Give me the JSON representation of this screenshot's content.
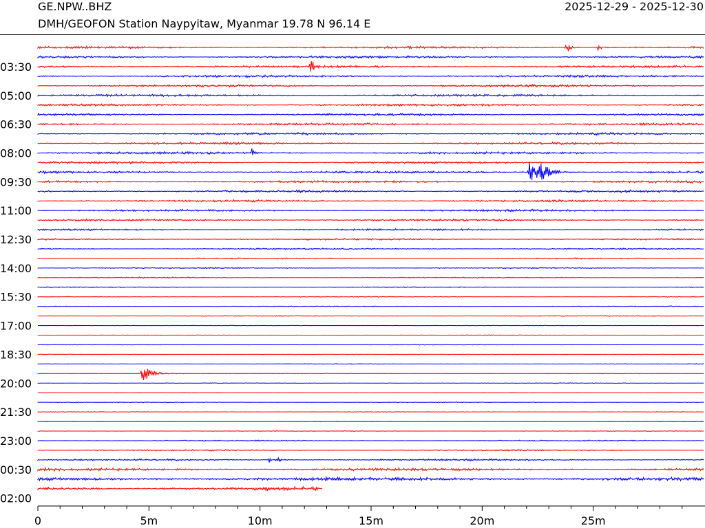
{
  "header": {
    "station_code": "GE.NPW..BHZ",
    "station_description": "DMH/GEOFON Station Naypyitaw, Myanmar  19.78 N 96.14 E",
    "date_range": "2025-12-29 - 2025-12-30"
  },
  "chart_data": {
    "type": "line",
    "subtype": "helicorder",
    "trace_count": 47,
    "trace_colors": [
      "#ff0000",
      "#0000ff"
    ],
    "y_tick_labels": [
      "03:30",
      "05:00",
      "06:30",
      "08:00",
      "09:30",
      "11:00",
      "12:30",
      "14:00",
      "15:30",
      "17:00",
      "18:30",
      "20:00",
      "21:30",
      "23:00",
      "00:30",
      "02:00"
    ],
    "x_ticks": [
      0,
      5,
      10,
      15,
      20,
      25
    ],
    "x_tick_labels": [
      "0",
      "5m",
      "10m",
      "15m",
      "20m",
      "25m"
    ],
    "x_range_minutes": [
      0,
      30
    ],
    "last_trace_end_minute": 12.8,
    "trace_noise_levels": [
      1.0,
      1.0,
      1.0,
      1.0,
      1.0,
      1.0,
      1.0,
      1.0,
      1.0,
      1.0,
      1.0,
      1.0,
      1.0,
      1.0,
      1.0,
      1.0,
      0.9,
      0.9,
      0.9,
      0.8,
      0.7,
      0.6,
      0.55,
      0.5,
      0.5,
      0.45,
      0.4,
      0.4,
      0.35,
      0.3,
      0.3,
      0.3,
      0.3,
      0.3,
      0.3,
      0.3,
      0.3,
      0.3,
      0.3,
      0.3,
      0.3,
      0.5,
      0.6,
      0.8,
      1.2,
      1.5,
      1.6
    ],
    "events": [
      {
        "trace": 0,
        "minute": 23.8,
        "amplitude": 9
      },
      {
        "trace": 0,
        "minute": 25.2,
        "amplitude": 8
      },
      {
        "trace": 2,
        "minute": 12.3,
        "amplitude": 11
      },
      {
        "trace": 11,
        "minute": 9.6,
        "amplitude": 9
      },
      {
        "trace": 13,
        "minute": 22.1,
        "amplitude": 17
      },
      {
        "trace": 13,
        "minute": 22.5,
        "amplitude": 16
      },
      {
        "trace": 34,
        "minute": 4.7,
        "amplitude": 14
      },
      {
        "trace": 43,
        "minute": 10.8,
        "amplitude": 7
      },
      {
        "trace": 43,
        "minute": 10.4,
        "amplitude": 4
      }
    ]
  }
}
